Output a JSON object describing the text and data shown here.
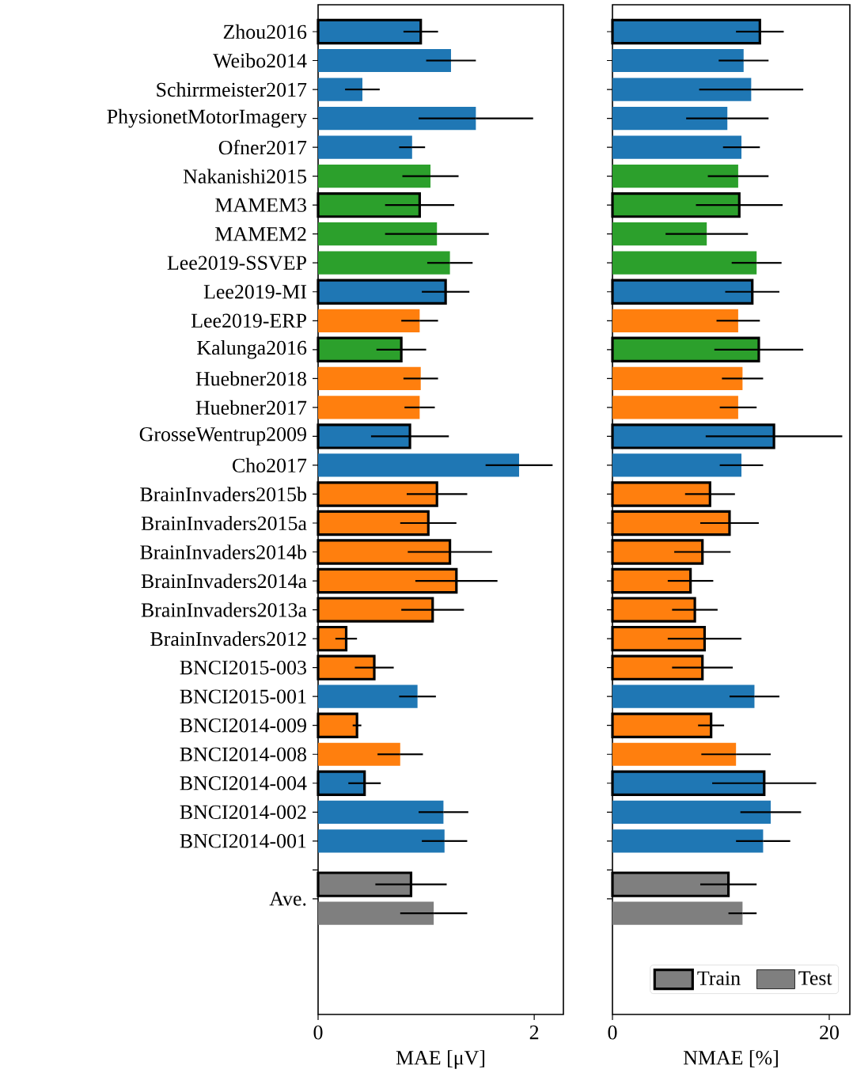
{
  "chart_data": [
    {
      "type": "bar",
      "orientation": "horizontal",
      "xlabel": "MAE [μV]",
      "xlim": [
        0,
        2.27
      ],
      "xticks": [
        0,
        2
      ],
      "categories": [
        "Zhou2016",
        "Weibo2014",
        "Schirrmeister2017",
        "PhysionetMotorImagery",
        "Ofner2017",
        "Nakanishi2015",
        "MAMEM3",
        "MAMEM2",
        "Lee2019-SSVEP",
        "Lee2019-MI",
        "Lee2019-ERP",
        "Kalunga2016",
        "Huebner2018",
        "Huebner2017",
        "GrosseWentrup2009",
        "Cho2017",
        "BrainInvaders2015b",
        "BrainInvaders2015a",
        "BrainInvaders2014b",
        "BrainInvaders2014a",
        "BrainInvaders2013a",
        "BrainInvaders2012",
        "BNCI2015-003",
        "BNCI2015-001",
        "BNCI2014-009",
        "BNCI2014-008",
        "BNCI2014-004",
        "BNCI2014-002",
        "BNCI2014-001",
        null,
        "Ave."
      ],
      "series": [
        {
          "values": [
            0.95,
            null,
            null,
            null,
            null,
            null,
            0.94,
            null,
            null,
            1.18,
            null,
            0.77,
            null,
            null,
            0.85,
            null,
            1.1,
            1.02,
            1.22,
            1.28,
            1.06,
            0.26,
            0.52,
            null,
            0.36,
            null,
            0.43,
            null,
            null,
            null,
            0.86
          ],
          "errors": [
            0.16,
            null,
            null,
            null,
            null,
            null,
            0.32,
            null,
            null,
            0.22,
            null,
            0.23,
            null,
            null,
            0.36,
            null,
            0.28,
            0.26,
            0.39,
            0.38,
            0.29,
            0.1,
            0.18,
            null,
            0.04,
            null,
            0.15,
            null,
            null,
            null,
            0.33
          ],
          "colors": [
            "#1f77b4",
            null,
            null,
            null,
            null,
            null,
            "#2ca02c",
            null,
            null,
            "#1f77b4",
            null,
            "#2ca02c",
            null,
            null,
            "#1f77b4",
            null,
            "#ff7f0e",
            "#ff7f0e",
            "#ff7f0e",
            "#ff7f0e",
            "#ff7f0e",
            "#ff7f0e",
            "#ff7f0e",
            null,
            "#ff7f0e",
            null,
            "#1f77b4",
            null,
            null,
            null,
            "#7f7f7f"
          ]
        },
        {
          "values": [
            null,
            1.23,
            0.41,
            1.46,
            0.87,
            1.04,
            null,
            1.1,
            1.22,
            null,
            0.94,
            null,
            0.95,
            0.94,
            null,
            1.86,
            null,
            null,
            null,
            null,
            null,
            null,
            null,
            0.92,
            null,
            0.76,
            null,
            1.16,
            1.17,
            null,
            1.07
          ],
          "errors": [
            null,
            0.23,
            0.16,
            0.53,
            0.12,
            0.26,
            null,
            0.48,
            0.21,
            null,
            0.17,
            null,
            0.16,
            0.14,
            null,
            0.31,
            null,
            null,
            null,
            null,
            null,
            null,
            null,
            0.17,
            null,
            0.21,
            null,
            0.23,
            0.21,
            null,
            0.31
          ],
          "colors": [
            null,
            "#1f77b4",
            "#1f77b4",
            "#1f77b4",
            "#1f77b4",
            "#2ca02c",
            null,
            "#2ca02c",
            "#2ca02c",
            null,
            "#ff7f0e",
            null,
            "#ff7f0e",
            "#ff7f0e",
            null,
            "#1f77b4",
            null,
            null,
            null,
            null,
            null,
            null,
            null,
            "#1f77b4",
            null,
            "#ff7f0e",
            null,
            "#1f77b4",
            "#1f77b4",
            null,
            "#7f7f7f"
          ]
        }
      ]
    },
    {
      "type": "bar",
      "orientation": "horizontal",
      "xlabel": "NMAE [%]",
      "xlim": [
        0,
        21.9
      ],
      "xticks": [
        0,
        20
      ],
      "tick_labels": "x",
      "legend": "bottom right",
      "categories": [
        null,
        null,
        null,
        null,
        null,
        null,
        null,
        null,
        null,
        null,
        null,
        null,
        null,
        null,
        null,
        null,
        null,
        null,
        null,
        null,
        null,
        null,
        null,
        null,
        null,
        null,
        null,
        null,
        null,
        null,
        null
      ],
      "series": [
        {
          "name": "Train",
          "color": "#7f7f7f",
          "values": [
            13.6,
            null,
            null,
            null,
            null,
            null,
            11.7,
            null,
            null,
            12.9,
            null,
            13.5,
            null,
            null,
            14.9,
            null,
            9.0,
            10.8,
            8.3,
            7.2,
            7.6,
            8.5,
            8.3,
            null,
            9.1,
            null,
            14.0,
            null,
            null,
            null,
            10.7
          ],
          "errors": [
            2.2,
            null,
            null,
            null,
            null,
            null,
            4.0,
            null,
            null,
            2.5,
            null,
            4.1,
            null,
            null,
            6.3,
            null,
            2.3,
            2.7,
            2.6,
            2.1,
            2.1,
            3.4,
            2.8,
            null,
            1.2,
            null,
            4.8,
            null,
            null,
            null,
            2.6
          ],
          "colors": [
            "#1f77b4",
            null,
            null,
            null,
            null,
            null,
            "#2ca02c",
            null,
            null,
            "#1f77b4",
            null,
            "#2ca02c",
            null,
            null,
            "#1f77b4",
            null,
            "#ff7f0e",
            "#ff7f0e",
            "#ff7f0e",
            "#ff7f0e",
            "#ff7f0e",
            "#ff7f0e",
            "#ff7f0e",
            null,
            "#ff7f0e",
            null,
            "#1f77b4",
            null,
            null,
            null,
            "#7f7f7f"
          ]
        },
        {
          "name": "Test",
          "color": "#7f7f7f",
          "values": [
            null,
            12.1,
            12.8,
            10.6,
            11.9,
            11.6,
            null,
            8.7,
            13.3,
            null,
            11.6,
            null,
            12.0,
            11.6,
            null,
            11.9,
            null,
            null,
            null,
            null,
            null,
            null,
            null,
            13.1,
            null,
            11.4,
            null,
            14.6,
            13.9,
            null,
            12.0
          ],
          "errors": [
            null,
            2.3,
            4.8,
            3.8,
            1.7,
            2.8,
            null,
            3.8,
            2.3,
            null,
            2.0,
            null,
            1.9,
            1.7,
            null,
            2.0,
            null,
            null,
            null,
            null,
            null,
            null,
            null,
            2.3,
            null,
            3.2,
            null,
            2.8,
            2.5,
            null,
            1.3
          ],
          "colors": [
            null,
            "#1f77b4",
            "#1f77b4",
            "#1f77b4",
            "#1f77b4",
            "#2ca02c",
            null,
            "#2ca02c",
            "#2ca02c",
            null,
            "#ff7f0e",
            null,
            "#ff7f0e",
            "#ff7f0e",
            null,
            "#1f77b4",
            null,
            null,
            null,
            null,
            null,
            null,
            null,
            "#1f77b4",
            null,
            "#ff7f0e",
            null,
            "#1f77b4",
            "#1f77b4",
            null,
            "#7f7f7f"
          ]
        }
      ]
    }
  ]
}
